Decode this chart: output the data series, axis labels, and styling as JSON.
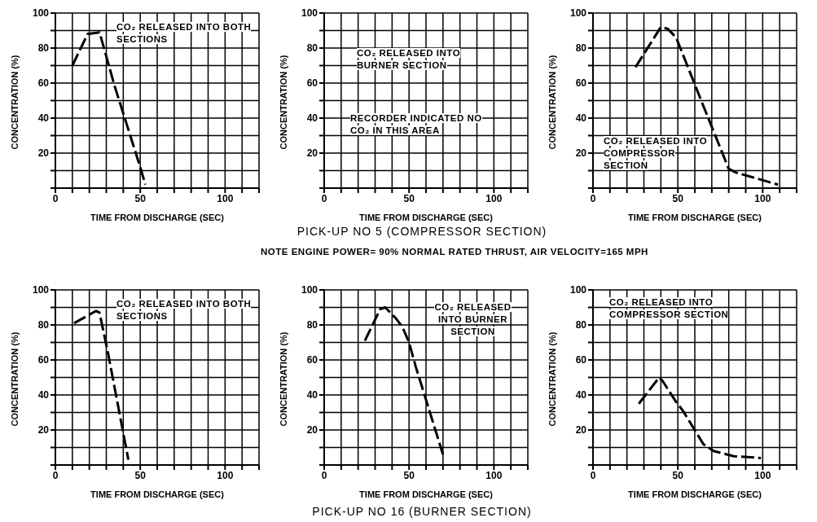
{
  "chart_data": [
    {
      "type": "line",
      "xlabel": "TIME FROM DISCHARGE (SEC)",
      "ylabel": "CONCENTRATION (%)",
      "xlim": [
        0,
        120
      ],
      "ylim": [
        0,
        100
      ],
      "xticks": [
        0,
        {
          "value": 10,
          "label": null
        },
        {
          "value": 20,
          "label": null
        },
        {
          "value": 30,
          "label": null
        },
        {
          "value": 40,
          "label": null
        },
        50,
        {
          "value": 60,
          "label": null
        },
        {
          "value": 70,
          "label": null
        },
        {
          "value": 80,
          "label": null
        },
        {
          "value": 90,
          "label": null
        },
        100,
        {
          "value": 110,
          "label": null
        },
        {
          "value": 120,
          "label": null
        }
      ],
      "yticks": [
        {
          "value": 0,
          "label": null
        },
        {
          "value": 10,
          "label": null
        },
        20,
        {
          "value": 30,
          "label": null
        },
        40,
        {
          "value": 50,
          "label": null
        },
        60,
        {
          "value": 70,
          "label": null
        },
        80,
        {
          "value": 90,
          "label": null
        },
        100
      ],
      "grid": true,
      "line_style": "dashed",
      "annotations": [
        "CO₂ RELEASED INTO BOTH SECTIONS"
      ],
      "series": [
        {
          "color": "#000000",
          "x": [
            10,
            19,
            26,
            35,
            50,
            53
          ],
          "values": [
            70,
            88,
            89,
            58,
            12,
            2
          ]
        }
      ]
    },
    {
      "type": "line",
      "xlabel": "TIME FROM DISCHARGE (SEC)",
      "ylabel": "CONCENTRATION (%)",
      "xlim": [
        0,
        120
      ],
      "ylim": [
        0,
        100
      ],
      "xticks": [
        0,
        {
          "value": 10,
          "label": null
        },
        {
          "value": 20,
          "label": null
        },
        {
          "value": 30,
          "label": null
        },
        {
          "value": 40,
          "label": null
        },
        50,
        {
          "value": 60,
          "label": null
        },
        {
          "value": 70,
          "label": null
        },
        {
          "value": 80,
          "label": null
        },
        {
          "value": 90,
          "label": null
        },
        100,
        {
          "value": 110,
          "label": null
        },
        {
          "value": 120,
          "label": null
        }
      ],
      "yticks": [
        {
          "value": 0,
          "label": null
        },
        {
          "value": 10,
          "label": null
        },
        20,
        {
          "value": 30,
          "label": null
        },
        40,
        {
          "value": 50,
          "label": null
        },
        60,
        {
          "value": 70,
          "label": null
        },
        80,
        {
          "value": 90,
          "label": null
        },
        100
      ],
      "grid": true,
      "subtitle": "PICK-UP NO 5 (COMPRESSOR SECTION)",
      "annotations": [
        "CO₂ RELEASED INTO BURNER SECTION",
        "RECORDER INDICATED NO CO₂ IN THIS AREA",
        "NOTE   ENGINE POWER= 90% NORMAL RATED THRUST,  AIR VELOCITY=165 MPH"
      ]
    },
    {
      "type": "line",
      "xlabel": "TIME FROM DISCHARGE (SEC)",
      "ylabel": "CONCENTRATION (%)",
      "xlim": [
        0,
        120
      ],
      "ylim": [
        0,
        100
      ],
      "xticks": [
        0,
        {
          "value": 10,
          "label": null
        },
        {
          "value": 20,
          "label": null
        },
        {
          "value": 30,
          "label": null
        },
        {
          "value": 40,
          "label": null
        },
        50,
        {
          "value": 60,
          "label": null
        },
        {
          "value": 70,
          "label": null
        },
        {
          "value": 80,
          "label": null
        },
        {
          "value": 90,
          "label": null
        },
        100,
        {
          "value": 110,
          "label": null
        },
        {
          "value": 120,
          "label": null
        }
      ],
      "yticks": [
        {
          "value": 0,
          "label": null
        },
        {
          "value": 10,
          "label": null
        },
        20,
        {
          "value": 30,
          "label": null
        },
        40,
        {
          "value": 50,
          "label": null
        },
        60,
        {
          "value": 70,
          "label": null
        },
        80,
        {
          "value": 90,
          "label": null
        },
        100
      ],
      "grid": true,
      "line_style": "dashed",
      "annotations": [
        "CO₂ RELEASED INTO COMPRESSOR SECTION"
      ],
      "series": [
        {
          "color": "#000000",
          "x": [
            25,
            40,
            44,
            49,
            65,
            80,
            84,
            109
          ],
          "values": [
            69,
            92,
            91,
            86,
            47,
            11,
            9,
            2
          ]
        }
      ]
    },
    {
      "type": "line",
      "xlabel": "TIME FROM DISCHARGE (SEC)",
      "ylabel": "CONCENTRATION (%)",
      "xlim": [
        0,
        120
      ],
      "ylim": [
        0,
        100
      ],
      "xticks": [
        0,
        {
          "value": 10,
          "label": null
        },
        {
          "value": 20,
          "label": null
        },
        {
          "value": 30,
          "label": null
        },
        {
          "value": 40,
          "label": null
        },
        50,
        {
          "value": 60,
          "label": null
        },
        {
          "value": 70,
          "label": null
        },
        {
          "value": 80,
          "label": null
        },
        {
          "value": 90,
          "label": null
        },
        100,
        {
          "value": 110,
          "label": null
        },
        {
          "value": 120,
          "label": null
        }
      ],
      "yticks": [
        {
          "value": 0,
          "label": null
        },
        {
          "value": 10,
          "label": null
        },
        20,
        {
          "value": 30,
          "label": null
        },
        40,
        {
          "value": 50,
          "label": null
        },
        60,
        {
          "value": 70,
          "label": null
        },
        80,
        {
          "value": 90,
          "label": null
        },
        100
      ],
      "grid": true,
      "line_style": "dashed",
      "annotations": [
        "CO₂ RELEASED INTO BOTH SECTIONS"
      ],
      "series": [
        {
          "color": "#000000",
          "x": [
            11,
            24,
            26,
            31,
            43
          ],
          "values": [
            81,
            88,
            87,
            64,
            3
          ]
        }
      ]
    },
    {
      "type": "line",
      "xlabel": "TIME FROM DISCHARGE (SEC)",
      "ylabel": "CONCENTRATION (%)",
      "xlim": [
        0,
        120
      ],
      "ylim": [
        0,
        100
      ],
      "xticks": [
        0,
        {
          "value": 10,
          "label": null
        },
        {
          "value": 20,
          "label": null
        },
        {
          "value": 30,
          "label": null
        },
        {
          "value": 40,
          "label": null
        },
        50,
        {
          "value": 60,
          "label": null
        },
        {
          "value": 70,
          "label": null
        },
        {
          "value": 80,
          "label": null
        },
        {
          "value": 90,
          "label": null
        },
        100,
        {
          "value": 110,
          "label": null
        },
        {
          "value": 120,
          "label": null
        }
      ],
      "yticks": [
        {
          "value": 0,
          "label": null
        },
        {
          "value": 10,
          "label": null
        },
        20,
        {
          "value": 30,
          "label": null
        },
        40,
        {
          "value": 50,
          "label": null
        },
        60,
        {
          "value": 70,
          "label": null
        },
        80,
        {
          "value": 90,
          "label": null
        },
        100
      ],
      "grid": true,
      "line_style": "dashed",
      "subtitle": "PICK-UP NO 16 (BURNER SECTION)",
      "annotations": [
        "CO₂ RELEASED INTO BURNER SECTION"
      ],
      "series": [
        {
          "color": "#000000",
          "x": [
            24,
            33,
            36,
            42,
            46,
            50,
            54,
            70
          ],
          "values": [
            71,
            89,
            90,
            84,
            79,
            70,
            56,
            6
          ]
        }
      ]
    },
    {
      "type": "line",
      "xlabel": "TIME FROM DISCHARGE (SEC)",
      "ylabel": "CONCENTRATION (%)",
      "xlim": [
        0,
        120
      ],
      "ylim": [
        0,
        100
      ],
      "xticks": [
        0,
        {
          "value": 10,
          "label": null
        },
        {
          "value": 20,
          "label": null
        },
        {
          "value": 30,
          "label": null
        },
        {
          "value": 40,
          "label": null
        },
        50,
        {
          "value": 60,
          "label": null
        },
        {
          "value": 70,
          "label": null
        },
        {
          "value": 80,
          "label": null
        },
        {
          "value": 90,
          "label": null
        },
        100,
        {
          "value": 110,
          "label": null
        },
        {
          "value": 120,
          "label": null
        }
      ],
      "yticks": [
        {
          "value": 0,
          "label": null
        },
        {
          "value": 10,
          "label": null
        },
        20,
        {
          "value": 30,
          "label": null
        },
        40,
        {
          "value": 50,
          "label": null
        },
        60,
        {
          "value": 70,
          "label": null
        },
        80,
        {
          "value": 90,
          "label": null
        },
        100
      ],
      "grid": true,
      "line_style": "dashed",
      "annotations": [
        "CO₂ RELEASED INTO COMPRESSOR SECTION"
      ],
      "series": [
        {
          "color": "#000000",
          "x": [
            27,
            39,
            41,
            49,
            53,
            65,
            71,
            83,
            99
          ],
          "values": [
            35,
            50,
            48,
            36,
            31,
            12,
            8,
            5,
            4
          ]
        }
      ]
    }
  ]
}
